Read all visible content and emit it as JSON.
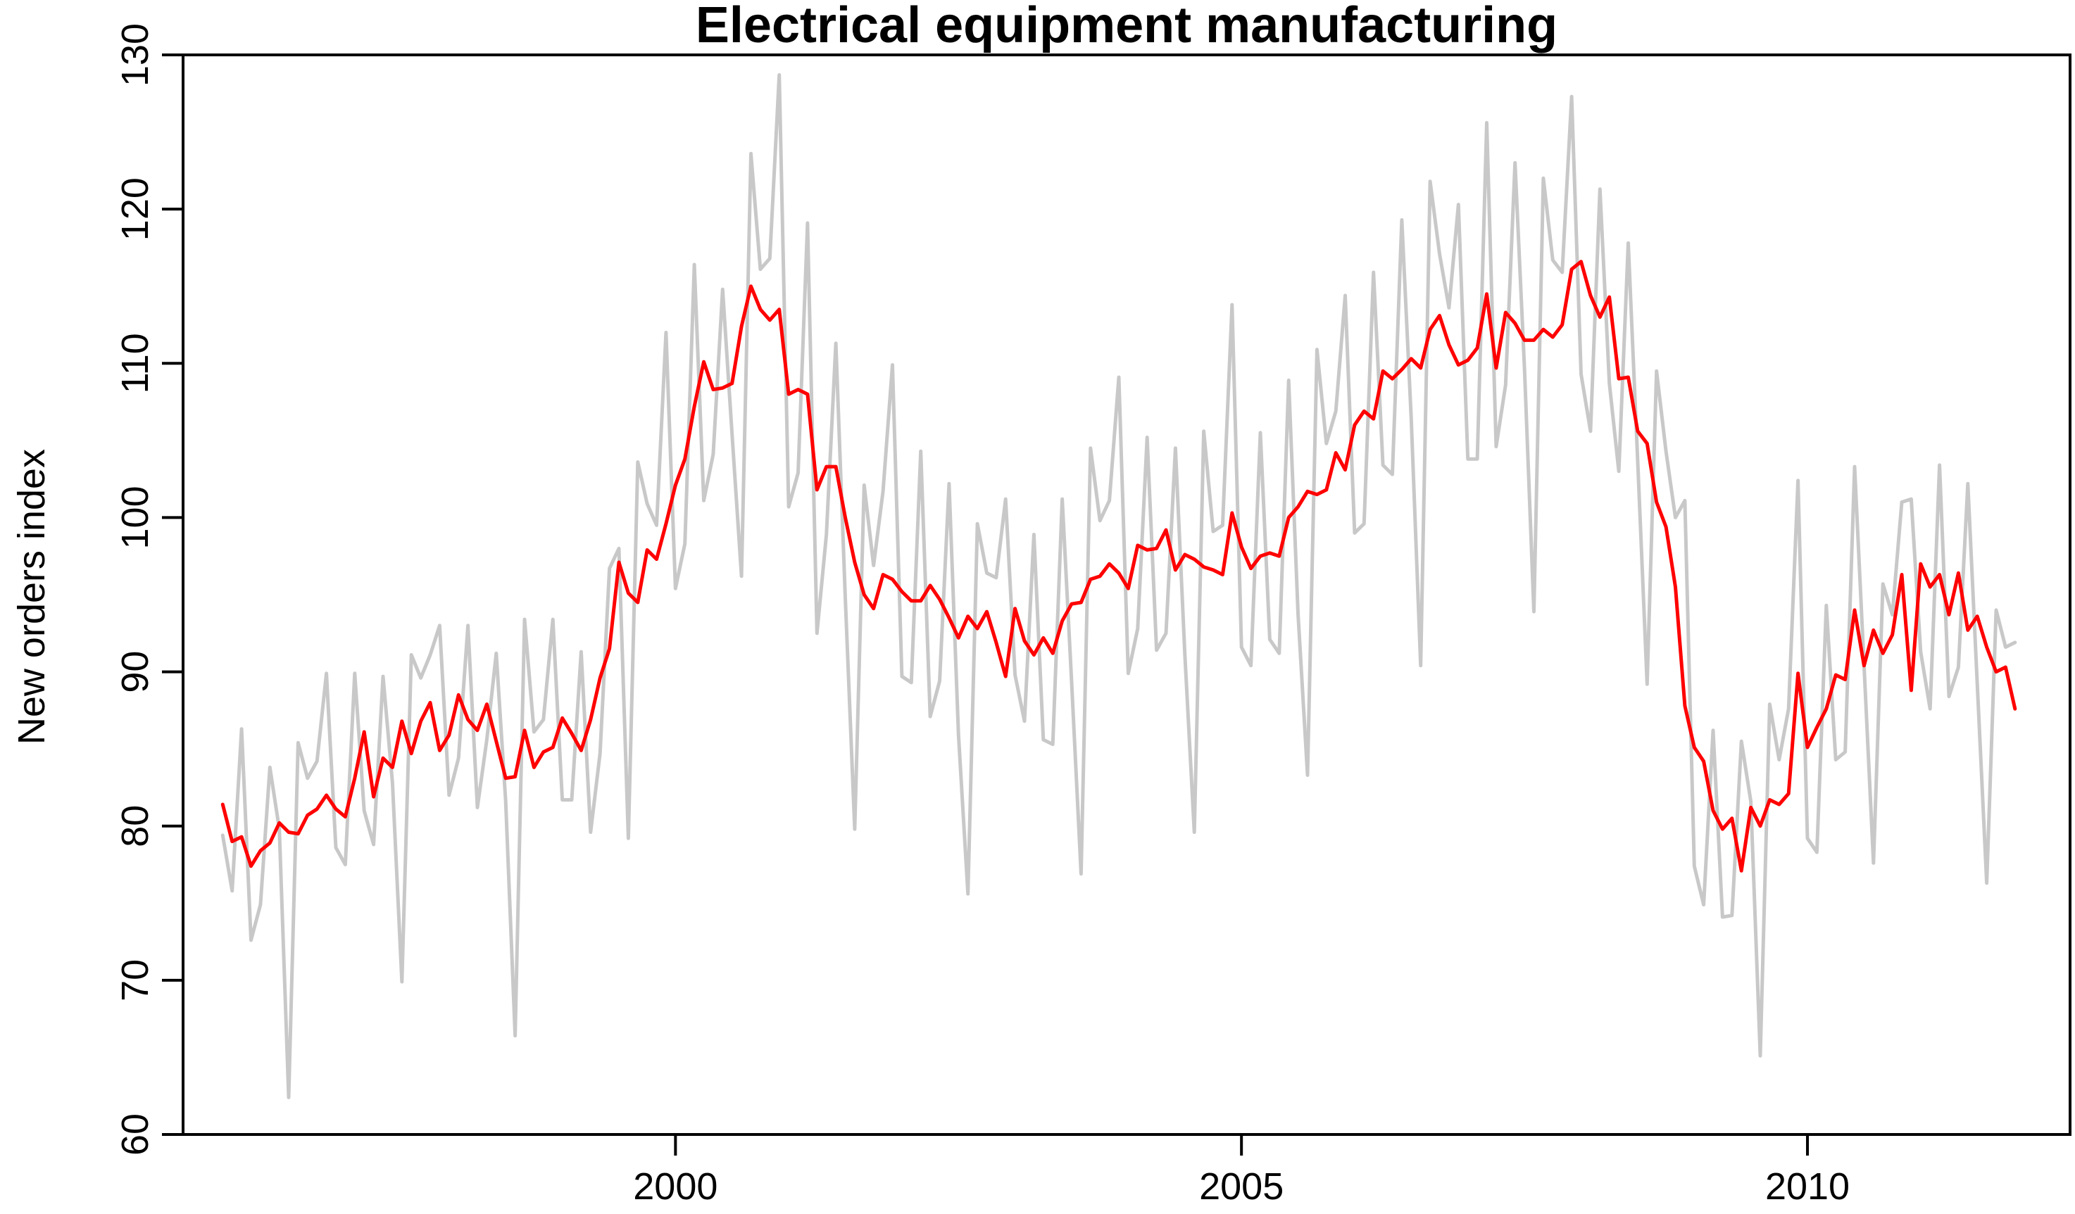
{
  "chart_data": {
    "type": "line",
    "title": "Electrical equipment manufacturing",
    "xlabel": "",
    "ylabel": "New orders index",
    "x_start": 1996.0,
    "x_step_months": 1,
    "xlim": [
      1995.65,
      2012.32
    ],
    "ylim": [
      60,
      130
    ],
    "x_ticks": [
      2000,
      2005,
      2010
    ],
    "y_ticks": [
      60,
      70,
      80,
      90,
      100,
      110,
      120,
      130
    ],
    "grid": false,
    "series": [
      {
        "color": "#c8c8c8",
        "values": [
          79.4,
          75.8,
          86.3,
          72.6,
          74.9,
          83.8,
          79.8,
          62.4,
          85.4,
          83.1,
          84.2,
          89.9,
          78.6,
          77.5,
          89.9,
          81.0,
          78.8,
          89.7,
          82.8,
          69.9,
          91.1,
          89.6,
          91.1,
          93.0,
          82.0,
          84.4,
          93.0,
          81.2,
          85.6,
          91.2,
          81.6,
          66.4,
          93.4,
          86.1,
          86.9,
          93.4,
          81.7,
          81.7,
          91.3,
          79.6,
          84.7,
          96.7,
          98.0,
          79.2,
          103.6,
          100.9,
          99.5,
          112.0,
          95.4,
          98.3,
          116.4,
          101.1,
          104.1,
          114.8,
          105.4,
          96.2,
          123.6,
          116.1,
          116.8,
          128.7,
          100.7,
          102.9,
          119.1,
          92.5,
          98.9,
          111.3,
          94.8,
          79.8,
          102.1,
          96.9,
          101.7,
          109.9,
          89.7,
          89.3,
          104.3,
          87.1,
          89.4,
          102.2,
          85.9,
          75.6,
          99.6,
          96.4,
          96.1,
          101.2,
          89.8,
          86.8,
          98.9,
          85.6,
          85.3,
          101.2,
          89.3,
          76.9,
          104.5,
          99.8,
          101.1,
          109.1,
          89.9,
          92.8,
          105.2,
          91.4,
          92.5,
          104.5,
          91.1,
          79.6,
          105.6,
          99.1,
          99.5,
          113.8,
          91.6,
          90.4,
          105.5,
          92.1,
          91.2,
          108.9,
          93.7,
          83.3,
          110.9,
          104.8,
          106.9,
          114.4,
          99.0,
          99.6,
          115.9,
          103.4,
          102.8,
          119.3,
          106.4,
          90.4,
          121.8,
          117.1,
          113.6,
          120.3,
          103.8,
          103.8,
          125.6,
          104.6,
          108.6,
          123.0,
          109.7,
          93.9,
          122.0,
          116.7,
          115.9,
          127.3,
          109.3,
          105.6,
          121.3,
          108.7,
          103.0,
          117.8,
          103.7,
          89.2,
          109.5,
          104.3,
          100.0,
          101.1,
          77.4,
          74.9,
          86.2,
          74.1,
          74.2,
          85.5,
          81.6,
          65.1,
          87.9,
          84.3,
          87.6,
          102.4,
          79.2,
          78.3,
          94.3,
          84.3,
          84.8,
          103.3,
          90.4,
          77.6,
          95.7,
          93.7,
          101.0,
          101.2,
          91.3,
          87.6,
          103.4,
          88.4,
          90.3,
          102.2,
          89.2,
          76.3,
          94.0,
          91.6,
          91.9
        ]
      },
      {
        "color": "#ff0000",
        "values": [
          81.4,
          79.0,
          79.3,
          77.4,
          78.4,
          78.9,
          80.2,
          79.6,
          79.5,
          80.7,
          81.1,
          82.0,
          81.1,
          80.6,
          83.1,
          86.1,
          81.9,
          84.4,
          83.8,
          86.8,
          84.7,
          86.8,
          88.0,
          84.9,
          85.9,
          88.5,
          86.9,
          86.2,
          87.9,
          85.5,
          83.1,
          83.2,
          86.2,
          83.8,
          84.8,
          85.1,
          87.0,
          86.0,
          84.9,
          86.9,
          89.6,
          91.5,
          97.1,
          95.1,
          94.5,
          97.9,
          97.3,
          99.6,
          102.1,
          103.8,
          107.2,
          110.1,
          108.3,
          108.4,
          108.7,
          112.4,
          115.0,
          113.5,
          112.8,
          113.5,
          108.0,
          108.3,
          108.0,
          101.8,
          103.3,
          103.3,
          100.0,
          97.1,
          95.0,
          94.1,
          96.3,
          96.0,
          95.2,
          94.6,
          94.6,
          95.6,
          94.7,
          93.5,
          92.2,
          93.6,
          92.8,
          93.9,
          91.9,
          89.7,
          94.1,
          92.0,
          91.1,
          92.2,
          91.2,
          93.3,
          94.4,
          94.5,
          96.0,
          96.2,
          97.0,
          96.4,
          95.4,
          98.2,
          97.9,
          98.0,
          99.2,
          96.6,
          97.6,
          97.3,
          96.8,
          96.6,
          96.3,
          100.3,
          98.1,
          96.7,
          97.5,
          97.7,
          97.5,
          100.0,
          100.7,
          101.7,
          101.5,
          101.8,
          104.2,
          103.1,
          106.0,
          106.9,
          106.4,
          109.5,
          109.0,
          109.6,
          110.3,
          109.7,
          112.2,
          113.1,
          111.2,
          109.9,
          110.2,
          111.0,
          114.5,
          109.7,
          113.3,
          112.6,
          111.5,
          111.5,
          112.2,
          111.7,
          112.5,
          116.1,
          116.6,
          114.4,
          113.0,
          114.3,
          109.0,
          109.1,
          105.6,
          104.8,
          101.0,
          99.4,
          95.5,
          87.8,
          85.1,
          84.2,
          81.0,
          79.8,
          80.5,
          77.1,
          81.2,
          80.0,
          81.7,
          81.4,
          82.1,
          89.9,
          85.1,
          86.4,
          87.6,
          89.8,
          89.5,
          94.0,
          90.4,
          92.7,
          91.2,
          92.4,
          96.3,
          88.8,
          97.0,
          95.5,
          96.3,
          93.7,
          96.4,
          92.7,
          93.6,
          91.6,
          90.0,
          90.3,
          87.6
        ]
      }
    ]
  }
}
